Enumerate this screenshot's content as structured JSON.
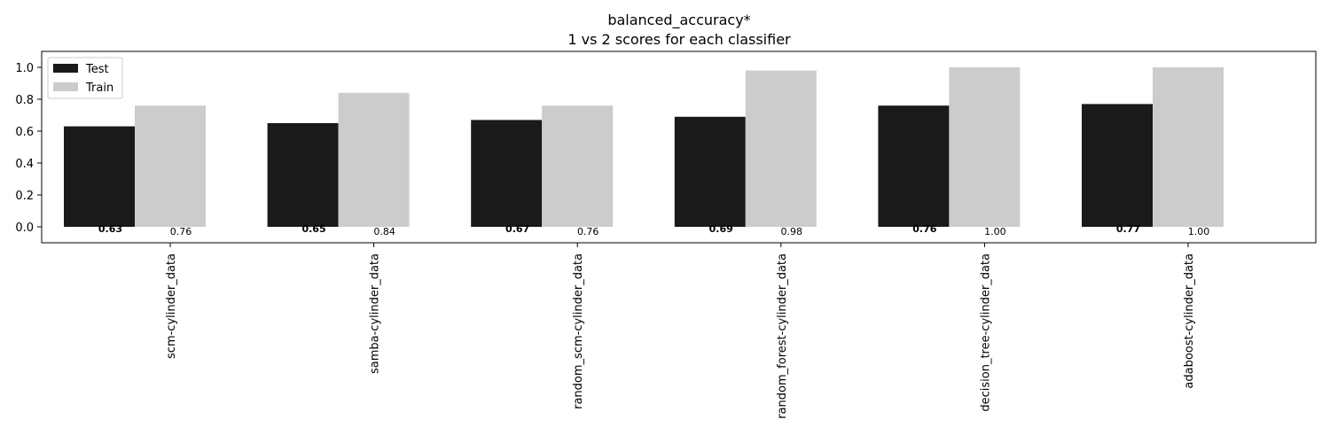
{
  "chart_data": {
    "type": "bar",
    "title": "balanced_accuracy*",
    "subtitle": "1 vs 2 scores for each classifier",
    "xlabel": "",
    "ylabel": "",
    "ylim": [
      -0.1,
      1.1
    ],
    "yticks": [
      "0.0",
      "0.2",
      "0.4",
      "0.6",
      "0.8",
      "1.0"
    ],
    "categories": [
      "scm-cylinder_data",
      "samba-cylinder_data",
      "random_scm-cylinder_data",
      "random_forest-cylinder_data",
      "decision_tree-cylinder_data",
      "adaboost-cylinder_data"
    ],
    "series": [
      {
        "name": "Test",
        "color": "#1a1a1a",
        "values": [
          0.63,
          0.65,
          0.67,
          0.69,
          0.76,
          0.77
        ],
        "labels": [
          "0.63",
          "0.65",
          "0.67",
          "0.69",
          "0.76",
          "0.77"
        ]
      },
      {
        "name": "Train",
        "color": "#cccccc",
        "values": [
          0.76,
          0.84,
          0.76,
          0.98,
          1.0,
          1.0
        ],
        "labels": [
          "0.76",
          "0.84",
          "0.76",
          "0.98",
          "1.00",
          "1.00"
        ]
      }
    ],
    "legend": "top-left",
    "grid": false
  }
}
